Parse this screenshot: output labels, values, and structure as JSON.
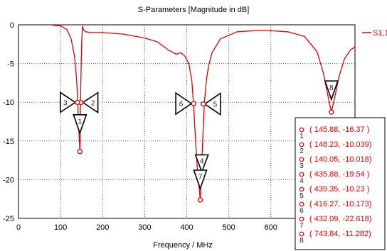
{
  "chart_data": {
    "type": "line",
    "title": "S-Parameters [Magnitude in dB]",
    "xlabel": "Frequency / MHz",
    "ylabel": "",
    "xlim": [
      0,
      800
    ],
    "ylim": [
      -25,
      0
    ],
    "xticks": [
      "0",
      "100",
      "200",
      "300",
      "400",
      "500",
      "600"
    ],
    "yticks": [
      "0",
      "-5",
      "-10",
      "-15",
      "-20",
      "-25"
    ],
    "grid": true,
    "legend_position": "top-right",
    "series": [
      {
        "name": "S1,1",
        "color": "#e00000",
        "x": [
          80,
          100,
          115,
          125,
          133,
          138,
          141,
          143,
          145.88,
          148,
          150,
          152,
          155,
          160,
          170,
          200,
          250,
          300,
          330,
          355,
          375,
          385,
          395,
          405,
          412,
          416,
          420,
          425,
          432.09,
          437,
          442,
          447,
          452,
          460,
          480,
          520,
          580,
          640,
          680,
          710,
          725,
          735,
          743.84,
          752,
          762,
          775,
          790,
          805
        ],
        "y": [
          -0.05,
          -0.15,
          -0.6,
          -1.8,
          -4,
          -7,
          -10,
          -13,
          -16.37,
          -8,
          -2.5,
          -0.2,
          -0.7,
          -0.9,
          -1,
          -1,
          -1.2,
          -1.7,
          -2.2,
          -3.2,
          -3.8,
          -3.6,
          -4,
          -5,
          -7.2,
          -10.2,
          -14,
          -18.5,
          -22.6,
          -16,
          -10,
          -7,
          -5.3,
          -3.6,
          -1.8,
          -0.9,
          -0.7,
          -0.9,
          -1.5,
          -3.5,
          -6.3,
          -9,
          -11.28,
          -9.3,
          -6.7,
          -4.4,
          -3.2,
          -2.7
        ]
      }
    ],
    "markers": [
      {
        "label": "1",
        "x": 145.88,
        "y": -16.37
      },
      {
        "label": "2",
        "x": 148.23,
        "y": -10.039
      },
      {
        "label": "3",
        "x": 140.05,
        "y": -10.018
      },
      {
        "label": "4",
        "x": 435.88,
        "y": -19.54
      },
      {
        "label": "5",
        "x": 439.35,
        "y": -10.23
      },
      {
        "label": "6",
        "x": 416.27,
        "y": -10.173
      },
      {
        "label": "7",
        "x": 432.09,
        "y": -22.618
      },
      {
        "label": "8",
        "x": 743.84,
        "y": -11.282
      }
    ],
    "marker_readouts": [
      "( 145.88, -16.37 )",
      "( 148.23, -10.039)",
      "( 140.05, -10.018)",
      "( 435.88, -19.54 )",
      "( 439.35, -10.23 )",
      "( 416.27, -10.173)",
      "( 432.09, -22.618)",
      "( 743.84, -11.282)"
    ]
  }
}
